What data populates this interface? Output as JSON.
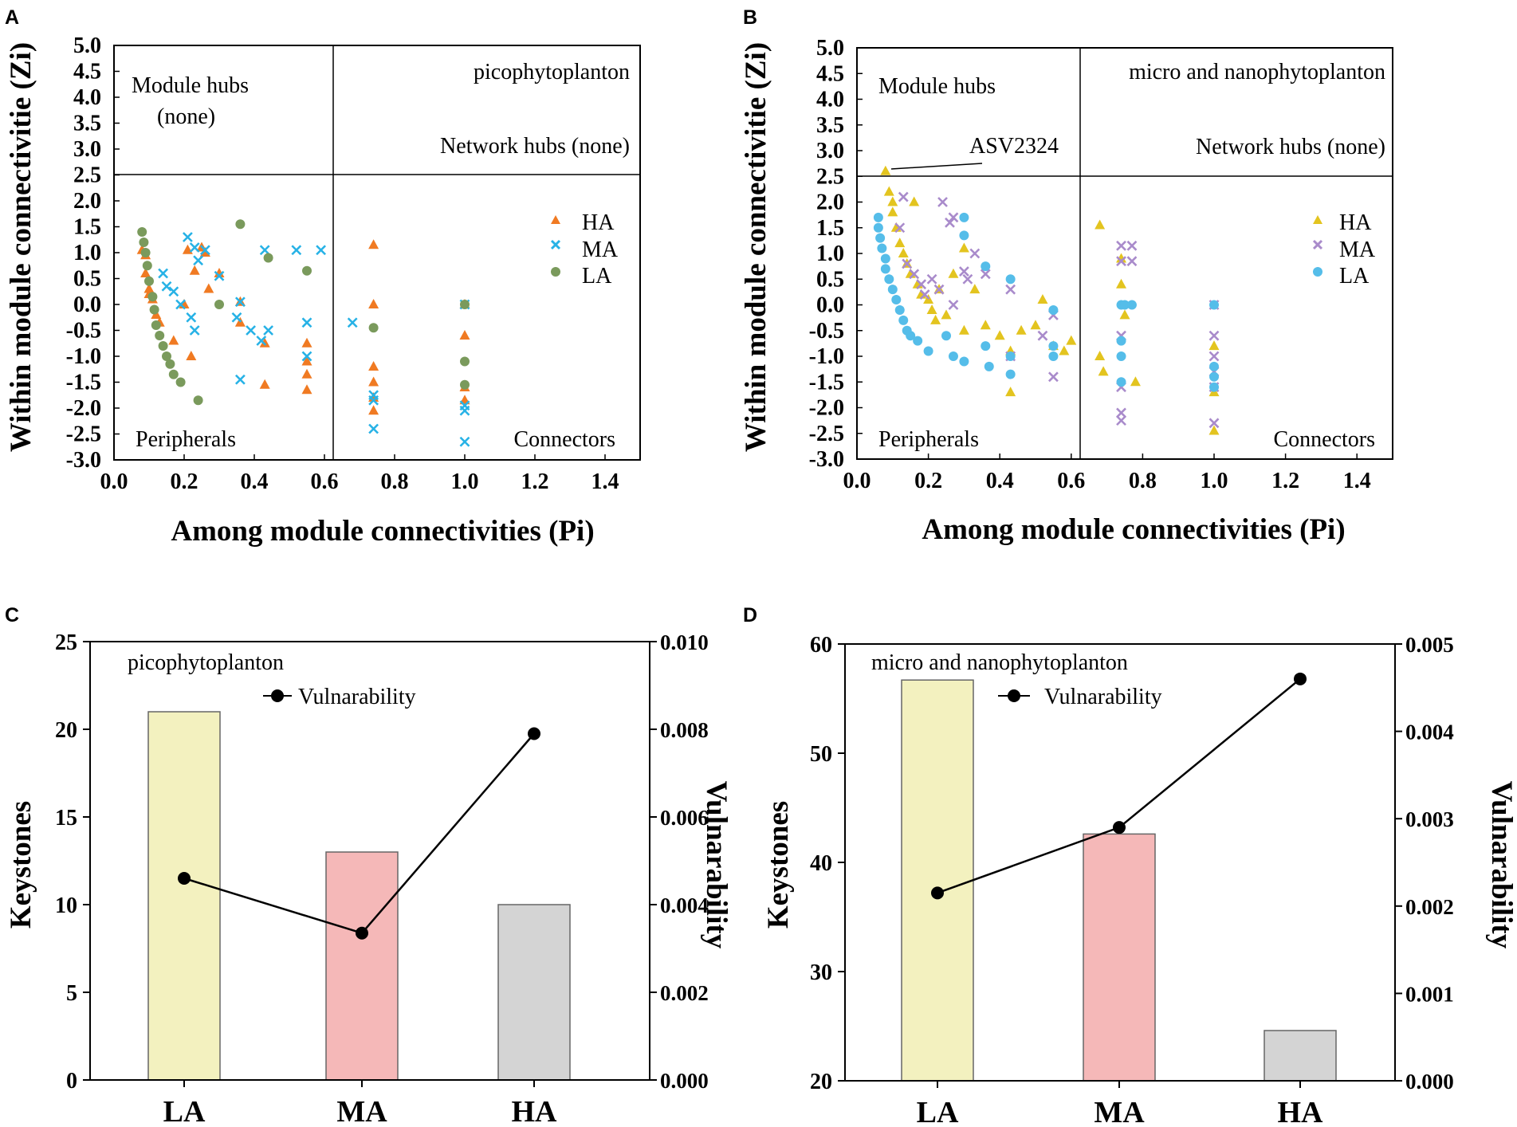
{
  "colors": {
    "HA_A": "#f07a22",
    "MA_A": "#27b2e6",
    "LA_A": "#7a9a5c",
    "HA_B": "#e3c41f",
    "MA_B": "#a98bcb",
    "LA_B": "#55bde9",
    "bar_LA": "#f3f1bf",
    "bar_MA": "#f5b8b8",
    "bar_HA": "#d4d4d4"
  },
  "chart_data": [
    {
      "panel": "A",
      "type": "scatter",
      "title": "picophytoplanton",
      "xlabel": "Among module connectivities (Pi)",
      "ylabel": "Within module connectivitie (Zi)",
      "xlim": [
        0.0,
        1.5
      ],
      "ylim": [
        -3.0,
        5.0
      ],
      "xticks": [
        "0.0",
        "0.2",
        "0.4",
        "0.6",
        "0.8",
        "1.0",
        "1.2",
        "1.4"
      ],
      "yticks": [
        "5.0",
        "4.5",
        "4.0",
        "3.5",
        "3.0",
        "2.5",
        "2.0",
        "1.5",
        "1.0",
        "0.5",
        "0.0",
        "-0.5",
        "-1.0",
        "-1.5",
        "-2.0",
        "-2.5",
        "-3.0"
      ],
      "threshold_x": 0.62,
      "threshold_y": 2.5,
      "region_labels": {
        "module_hubs": "Module hubs",
        "module_hubs_note": "(none)",
        "network_hubs": "Network hubs (none)",
        "peripherals": "Peripherals",
        "connectors": "Connectors"
      },
      "legend": [
        "HA",
        "MA",
        "LA"
      ],
      "series": [
        {
          "name": "HA",
          "marker": "triangle",
          "color_key": "HA_A",
          "points": [
            [
              0.08,
              1.05
            ],
            [
              0.09,
              0.95
            ],
            [
              0.09,
              0.6
            ],
            [
              0.1,
              0.3
            ],
            [
              0.1,
              0.2
            ],
            [
              0.11,
              0.1
            ],
            [
              0.12,
              -0.2
            ],
            [
              0.13,
              -0.35
            ],
            [
              0.17,
              -0.7
            ],
            [
              0.2,
              0.0
            ],
            [
              0.21,
              1.05
            ],
            [
              0.22,
              -1.0
            ],
            [
              0.23,
              0.65
            ],
            [
              0.25,
              1.1
            ],
            [
              0.26,
              1.0
            ],
            [
              0.27,
              0.3
            ],
            [
              0.3,
              0.6
            ],
            [
              0.36,
              0.05
            ],
            [
              0.36,
              -0.35
            ],
            [
              0.43,
              -0.75
            ],
            [
              0.43,
              -1.55
            ],
            [
              0.55,
              -0.75
            ],
            [
              0.55,
              -1.1
            ],
            [
              0.55,
              -1.35
            ],
            [
              0.55,
              -1.65
            ],
            [
              0.74,
              1.15
            ],
            [
              0.74,
              0.0
            ],
            [
              0.74,
              -1.2
            ],
            [
              0.74,
              -1.5
            ],
            [
              0.74,
              -1.8
            ],
            [
              0.74,
              -2.05
            ],
            [
              1.0,
              0.0
            ],
            [
              1.0,
              -0.6
            ],
            [
              1.0,
              -1.6
            ],
            [
              1.0,
              -1.85
            ]
          ]
        },
        {
          "name": "MA",
          "marker": "x",
          "color_key": "MA_A",
          "points": [
            [
              0.14,
              0.6
            ],
            [
              0.15,
              0.35
            ],
            [
              0.17,
              0.25
            ],
            [
              0.19,
              0.0
            ],
            [
              0.21,
              1.3
            ],
            [
              0.22,
              -0.25
            ],
            [
              0.23,
              1.1
            ],
            [
              0.23,
              -0.5
            ],
            [
              0.24,
              0.85
            ],
            [
              0.26,
              1.05
            ],
            [
              0.3,
              0.55
            ],
            [
              0.35,
              -0.25
            ],
            [
              0.36,
              0.05
            ],
            [
              0.36,
              -1.45
            ],
            [
              0.39,
              -0.5
            ],
            [
              0.42,
              -0.7
            ],
            [
              0.43,
              1.05
            ],
            [
              0.44,
              -0.5
            ],
            [
              0.52,
              1.05
            ],
            [
              0.55,
              -0.35
            ],
            [
              0.55,
              -1.0
            ],
            [
              0.59,
              1.05
            ],
            [
              0.68,
              -0.35
            ],
            [
              0.74,
              -1.75
            ],
            [
              0.74,
              -1.85
            ],
            [
              0.74,
              -2.4
            ],
            [
              1.0,
              0.0
            ],
            [
              1.0,
              -1.95
            ],
            [
              1.0,
              -2.05
            ],
            [
              1.0,
              -2.65
            ]
          ]
        },
        {
          "name": "LA",
          "marker": "circle",
          "color_key": "LA_A",
          "points": [
            [
              0.08,
              1.4
            ],
            [
              0.085,
              1.2
            ],
            [
              0.09,
              1.0
            ],
            [
              0.095,
              0.75
            ],
            [
              0.1,
              0.45
            ],
            [
              0.11,
              0.15
            ],
            [
              0.115,
              -0.1
            ],
            [
              0.12,
              -0.4
            ],
            [
              0.13,
              -0.6
            ],
            [
              0.14,
              -0.8
            ],
            [
              0.15,
              -1.0
            ],
            [
              0.16,
              -1.15
            ],
            [
              0.17,
              -1.35
            ],
            [
              0.19,
              -1.5
            ],
            [
              0.24,
              -1.85
            ],
            [
              0.3,
              0.0
            ],
            [
              0.36,
              1.55
            ],
            [
              0.44,
              0.9
            ],
            [
              0.55,
              0.65
            ],
            [
              0.74,
              -0.45
            ],
            [
              1.0,
              0.0
            ],
            [
              1.0,
              -1.1
            ],
            [
              1.0,
              -1.55
            ]
          ]
        }
      ]
    },
    {
      "panel": "B",
      "type": "scatter",
      "title": "micro and nanophytoplanton",
      "xlabel": "Among module connectivities (Pi)",
      "ylabel": "Within module connectivitie (Zi)",
      "xlim": [
        0.0,
        1.5
      ],
      "ylim": [
        -3.0,
        5.0
      ],
      "xticks": [
        "0.0",
        "0.2",
        "0.4",
        "0.6",
        "0.8",
        "1.0",
        "1.2",
        "1.4"
      ],
      "yticks": [
        "5.0",
        "4.5",
        "4.0",
        "3.5",
        "3.0",
        "2.5",
        "2.0",
        "1.5",
        "1.0",
        "0.5",
        "0.0",
        "-0.5",
        "-1.0",
        "-1.5",
        "-2.0",
        "-2.5",
        "-3.0"
      ],
      "threshold_x": 0.62,
      "threshold_y": 2.5,
      "region_labels": {
        "module_hubs": "Module hubs",
        "network_hubs": "Network hubs (none)",
        "peripherals": "Peripherals",
        "connectors": "Connectors"
      },
      "annotation": {
        "text": "ASV2324",
        "x": 0.08,
        "y": 2.6
      },
      "legend": [
        "HA",
        "MA",
        "LA"
      ],
      "series": [
        {
          "name": "HA",
          "marker": "triangle",
          "color_key": "HA_B",
          "points": [
            [
              0.08,
              2.6
            ],
            [
              0.09,
              2.2
            ],
            [
              0.1,
              2.0
            ],
            [
              0.1,
              1.8
            ],
            [
              0.11,
              1.5
            ],
            [
              0.12,
              1.2
            ],
            [
              0.13,
              1.0
            ],
            [
              0.14,
              0.8
            ],
            [
              0.15,
              0.6
            ],
            [
              0.16,
              2.0
            ],
            [
              0.17,
              0.4
            ],
            [
              0.18,
              0.2
            ],
            [
              0.2,
              0.1
            ],
            [
              0.21,
              -0.1
            ],
            [
              0.22,
              -0.3
            ],
            [
              0.23,
              0.3
            ],
            [
              0.25,
              -0.2
            ],
            [
              0.27,
              0.6
            ],
            [
              0.3,
              -0.5
            ],
            [
              0.3,
              1.1
            ],
            [
              0.33,
              0.3
            ],
            [
              0.36,
              -0.4
            ],
            [
              0.4,
              -0.6
            ],
            [
              0.43,
              -0.9
            ],
            [
              0.43,
              -1.7
            ],
            [
              0.46,
              -0.5
            ],
            [
              0.5,
              -0.4
            ],
            [
              0.52,
              0.1
            ],
            [
              0.55,
              -0.8
            ],
            [
              0.58,
              -0.9
            ],
            [
              0.6,
              -0.7
            ],
            [
              0.68,
              1.55
            ],
            [
              0.68,
              -1.0
            ],
            [
              0.69,
              -1.3
            ],
            [
              0.74,
              0.9
            ],
            [
              0.74,
              0.4
            ],
            [
              0.75,
              -0.2
            ],
            [
              0.78,
              -1.5
            ],
            [
              1.0,
              -0.8
            ],
            [
              1.0,
              -1.7
            ],
            [
              1.0,
              -2.45
            ]
          ]
        },
        {
          "name": "MA",
          "marker": "x",
          "color_key": "MA_B",
          "points": [
            [
              0.12,
              1.5
            ],
            [
              0.13,
              2.1
            ],
            [
              0.14,
              0.8
            ],
            [
              0.16,
              0.6
            ],
            [
              0.18,
              0.4
            ],
            [
              0.19,
              0.2
            ],
            [
              0.21,
              0.5
            ],
            [
              0.23,
              0.3
            ],
            [
              0.24,
              2.0
            ],
            [
              0.26,
              1.6
            ],
            [
              0.27,
              1.7
            ],
            [
              0.27,
              0.0
            ],
            [
              0.3,
              0.65
            ],
            [
              0.31,
              0.5
            ],
            [
              0.33,
              1.0
            ],
            [
              0.36,
              0.6
            ],
            [
              0.43,
              0.3
            ],
            [
              0.43,
              -1.0
            ],
            [
              0.52,
              -0.6
            ],
            [
              0.55,
              -0.2
            ],
            [
              0.55,
              -1.4
            ],
            [
              0.74,
              1.15
            ],
            [
              0.74,
              0.85
            ],
            [
              0.74,
              -0.6
            ],
            [
              0.74,
              -1.6
            ],
            [
              0.74,
              -2.1
            ],
            [
              0.74,
              -2.25
            ],
            [
              0.77,
              1.15
            ],
            [
              0.77,
              0.85
            ],
            [
              1.0,
              0.0
            ],
            [
              1.0,
              -0.6
            ],
            [
              1.0,
              -1.0
            ],
            [
              1.0,
              -1.3
            ],
            [
              1.0,
              -1.6
            ],
            [
              1.0,
              -2.3
            ]
          ]
        },
        {
          "name": "LA",
          "marker": "circle",
          "color_key": "LA_B",
          "points": [
            [
              0.06,
              1.7
            ],
            [
              0.06,
              1.5
            ],
            [
              0.065,
              1.3
            ],
            [
              0.07,
              1.1
            ],
            [
              0.08,
              0.9
            ],
            [
              0.08,
              0.7
            ],
            [
              0.09,
              0.5
            ],
            [
              0.1,
              0.3
            ],
            [
              0.11,
              0.1
            ],
            [
              0.12,
              -0.1
            ],
            [
              0.13,
              -0.3
            ],
            [
              0.14,
              -0.5
            ],
            [
              0.15,
              -0.6
            ],
            [
              0.17,
              -0.7
            ],
            [
              0.2,
              -0.9
            ],
            [
              0.25,
              -0.6
            ],
            [
              0.27,
              -1.0
            ],
            [
              0.3,
              -1.1
            ],
            [
              0.3,
              1.7
            ],
            [
              0.3,
              1.35
            ],
            [
              0.36,
              0.75
            ],
            [
              0.36,
              -0.8
            ],
            [
              0.37,
              -1.2
            ],
            [
              0.43,
              0.5
            ],
            [
              0.43,
              -1.0
            ],
            [
              0.43,
              -1.35
            ],
            [
              0.55,
              -0.1
            ],
            [
              0.55,
              -0.8
            ],
            [
              0.55,
              -1.0
            ],
            [
              0.74,
              0.0
            ],
            [
              0.74,
              -0.7
            ],
            [
              0.74,
              -1.0
            ],
            [
              0.74,
              -1.5
            ],
            [
              0.75,
              0.0
            ],
            [
              0.77,
              0.0
            ],
            [
              1.0,
              0.0
            ],
            [
              1.0,
              -1.2
            ],
            [
              1.0,
              -1.4
            ],
            [
              1.0,
              -1.6
            ]
          ]
        }
      ]
    },
    {
      "panel": "C",
      "type": "bar",
      "title": "picophytoplanton",
      "categories": [
        "LA",
        "MA",
        "HA"
      ],
      "values": [
        21,
        13,
        10
      ],
      "ylabel": "Keystones",
      "ylim": [
        0,
        25
      ],
      "yticks": [
        "0",
        "5",
        "10",
        "15",
        "20",
        "25"
      ],
      "y2label": "Vulnarability",
      "y2lim": [
        0.0,
        0.01
      ],
      "y2ticks": [
        "0.000",
        "0.002",
        "0.004",
        "0.006",
        "0.008",
        "0.010"
      ],
      "line_series": {
        "name": "Vulnarability",
        "values": [
          0.0046,
          0.00335,
          0.0079
        ]
      },
      "legend": [
        "Vulnarability"
      ]
    },
    {
      "panel": "D",
      "type": "bar",
      "title": "micro and  nanophytoplanton",
      "categories": [
        "LA",
        "MA",
        "HA"
      ],
      "values": [
        56.7,
        42.6,
        24.6
      ],
      "ylabel": "Keystones",
      "ylim": [
        20,
        60
      ],
      "yticks": [
        "20",
        "30",
        "40",
        "50",
        "60"
      ],
      "y2label": "Vulnarability",
      "y2lim": [
        0.0,
        0.005
      ],
      "y2ticks": [
        "0.000",
        "0.001",
        "0.002",
        "0.003",
        "0.004",
        "0.005"
      ],
      "line_series": {
        "name": "Vulnarability",
        "values": [
          0.00215,
          0.0029,
          0.0046
        ]
      },
      "legend": [
        "Vulnarability"
      ]
    }
  ]
}
